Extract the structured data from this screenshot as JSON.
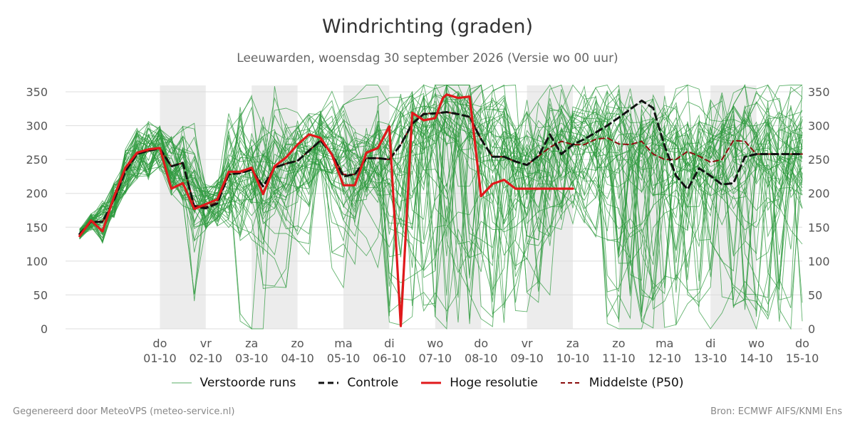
{
  "header": {
    "title": "Windrichting (graden)",
    "subtitle": "Leeuwarden, woensdag 30 september 2026 (Versie wo 00 uur)"
  },
  "footer": {
    "left": "Gegenereerd door MeteoVPS (meteo-service.nl)",
    "right": "Bron: ECMWF AIFS/KNMI Ens"
  },
  "legend": [
    {
      "label": "Verstoorde runs",
      "style": "thin",
      "color": "#2e9a3e"
    },
    {
      "label": "Controle",
      "style": "dashed",
      "color": "#111111"
    },
    {
      "label": "Hoge resolutie",
      "style": "solid",
      "color": "#e0191b"
    },
    {
      "label": "Middelste (P50)",
      "style": "dashed",
      "color": "#8b0d0d"
    }
  ],
  "chart_data": {
    "type": "line",
    "title": "Windrichting (graden)",
    "ylim": [
      0,
      360
    ],
    "yticks": [
      0,
      50,
      100,
      150,
      200,
      250,
      300,
      350
    ],
    "xlim": [
      0,
      15.5
    ],
    "x_unit": "days from 30-09 00 uur",
    "grid": true,
    "legend_position": "bottom",
    "xticks": [
      {
        "x": 1,
        "day": "do",
        "date": "01-10"
      },
      {
        "x": 2,
        "day": "vr",
        "date": "02-10"
      },
      {
        "x": 3,
        "day": "za",
        "date": "03-10"
      },
      {
        "x": 4,
        "day": "zo",
        "date": "04-10"
      },
      {
        "x": 5,
        "day": "ma",
        "date": "05-10"
      },
      {
        "x": 6,
        "day": "di",
        "date": "06-10"
      },
      {
        "x": 7,
        "day": "wo",
        "date": "07-10"
      },
      {
        "x": 8,
        "day": "do",
        "date": "08-10"
      },
      {
        "x": 9,
        "day": "vr",
        "date": "09-10"
      },
      {
        "x": 10,
        "day": "za",
        "date": "10-10"
      },
      {
        "x": 11,
        "day": "zo",
        "date": "11-10"
      },
      {
        "x": 12,
        "day": "ma",
        "date": "12-10"
      },
      {
        "x": 13,
        "day": "di",
        "date": "13-10"
      },
      {
        "x": 14,
        "day": "wo",
        "date": "14-10"
      },
      {
        "x": 15,
        "day": "do",
        "date": "15-10"
      }
    ],
    "shaded_bands": [
      [
        1,
        2
      ],
      [
        3,
        4
      ],
      [
        5,
        6
      ],
      [
        7,
        8
      ],
      [
        9,
        10
      ],
      [
        11,
        12
      ],
      [
        13,
        14
      ]
    ],
    "colors": {
      "ensemble": "#2e9a3e",
      "control": "#111111",
      "hires": "#e0191b",
      "median": "#8b0d0d",
      "band": "#ececec",
      "grid": "#dddddd",
      "tick_text": "#555555"
    },
    "series": [
      {
        "name": "Hoge resolutie",
        "x": [
          -0.75,
          -0.5,
          -0.25,
          0,
          0.25,
          0.5,
          0.75,
          1,
          1.25,
          1.5,
          1.75,
          2,
          2.25,
          2.5,
          2.75,
          3,
          3.25,
          3.5,
          3.75,
          4,
          4.25,
          4.5,
          4.75,
          5,
          5.25,
          5.5,
          5.75,
          6,
          6.25,
          6.5,
          6.75,
          7,
          7.17,
          7.25,
          7.5,
          7.75,
          8,
          8.25,
          8.5,
          8.75,
          9,
          9.25,
          9.5,
          9.75,
          10
        ],
        "y": [
          137,
          160,
          144,
          195,
          238,
          260,
          265,
          267,
          207,
          215,
          177,
          184,
          191,
          232,
          232,
          238,
          199,
          240,
          253,
          272,
          287,
          282,
          257,
          212,
          212,
          260,
          267,
          299,
          4,
          319,
          308,
          311,
          341,
          346,
          341,
          343,
          196,
          214,
          220,
          207,
          207,
          207,
          207,
          207,
          207
        ]
      },
      {
        "name": "Controle",
        "x": [
          -0.75,
          -0.5,
          -0.25,
          0,
          0.25,
          0.5,
          0.75,
          1,
          1.25,
          1.5,
          1.75,
          2,
          2.25,
          2.5,
          2.75,
          3,
          3.25,
          3.5,
          3.75,
          4,
          4.25,
          4.5,
          4.75,
          5,
          5.25,
          5.5,
          5.75,
          6,
          6.25,
          6.5,
          6.75,
          7,
          7.25,
          7.5,
          7.75,
          8,
          8.25,
          8.5,
          8.75,
          9,
          9.25,
          9.5,
          9.75,
          10,
          10.25,
          10.5,
          10.75,
          11,
          11.25,
          11.5,
          11.75,
          12,
          12.25,
          12.5,
          12.75,
          13,
          13.25,
          13.5,
          13.75,
          14,
          14.25,
          14.5,
          14.75,
          15
        ],
        "y": [
          140,
          158,
          158,
          190,
          233,
          258,
          263,
          266,
          240,
          245,
          180,
          178,
          185,
          228,
          230,
          235,
          210,
          238,
          244,
          248,
          263,
          278,
          258,
          225,
          228,
          252,
          252,
          250,
          272,
          303,
          317,
          318,
          320,
          317,
          313,
          280,
          254,
          254,
          247,
          242,
          255,
          287,
          258,
          272,
          280,
          290,
          300,
          312,
          324,
          337,
          326,
          270,
          226,
          206,
          237,
          226,
          213,
          215,
          254,
          258,
          258,
          258,
          258,
          258
        ]
      },
      {
        "name": "Middelste (P50)",
        "x": [
          -0.75,
          -0.5,
          -0.25,
          0,
          0.25,
          0.5,
          0.75,
          1,
          1.25,
          1.5,
          1.75,
          2,
          2.25,
          2.5,
          2.75,
          3,
          3.25,
          3.5,
          3.75,
          4,
          4.25,
          4.5,
          4.75,
          5,
          5.25,
          5.5,
          5.75,
          6,
          6.25,
          6.5,
          6.75,
          7,
          7.25,
          7.5,
          7.75,
          8,
          8.25,
          8.5,
          8.75,
          9,
          9.25,
          9.5,
          9.75,
          10,
          10.25,
          10.5,
          10.75,
          11,
          11.25,
          11.5,
          11.75,
          12,
          12.25,
          12.5,
          12.75,
          13,
          13.25,
          13.5,
          13.75,
          14,
          14.25,
          14.5,
          14.75,
          15
        ],
        "y": [
          140,
          158,
          158,
          190,
          233,
          258,
          263,
          266,
          240,
          245,
          182,
          180,
          187,
          228,
          230,
          235,
          210,
          238,
          244,
          248,
          263,
          278,
          258,
          228,
          228,
          252,
          252,
          250,
          272,
          303,
          318,
          318,
          320,
          317,
          313,
          280,
          254,
          254,
          247,
          242,
          255,
          268,
          277,
          272,
          272,
          280,
          282,
          273,
          272,
          277,
          258,
          250,
          250,
          262,
          255,
          246,
          250,
          278,
          277,
          258,
          258,
          258,
          258,
          258
        ]
      }
    ],
    "ensemble": {
      "name": "Verstoorde runs",
      "member_count": 50,
      "note_x_step": 0.25,
      "spread_low": [
        130,
        140,
        120,
        165,
        200,
        215,
        215,
        215,
        190,
        190,
        35,
        130,
        120,
        140,
        5,
        150,
        5,
        170,
        190,
        195,
        200,
        210,
        55,
        150,
        150,
        190,
        200,
        5,
        0,
        5,
        5,
        5,
        5,
        5,
        5,
        30,
        5,
        0,
        0,
        40,
        50,
        120,
        150,
        150,
        130,
        120,
        0,
        0,
        0,
        0,
        0,
        0,
        0,
        5,
        10,
        10,
        10,
        10,
        10,
        10,
        10,
        10,
        10,
        10
      ],
      "spread_high": [
        150,
        170,
        200,
        230,
        285,
        310,
        325,
        300,
        300,
        310,
        230,
        215,
        210,
        320,
        360,
        345,
        360,
        360,
        330,
        320,
        320,
        320,
        310,
        280,
        280,
        320,
        330,
        360,
        360,
        360,
        360,
        360,
        360,
        360,
        360,
        360,
        360,
        355,
        355,
        355,
        355,
        355,
        355,
        355,
        355,
        355,
        360,
        360,
        360,
        360,
        360,
        360,
        360,
        360,
        360,
        360,
        360,
        360,
        360,
        360,
        360,
        360,
        360,
        360
      ]
    }
  }
}
